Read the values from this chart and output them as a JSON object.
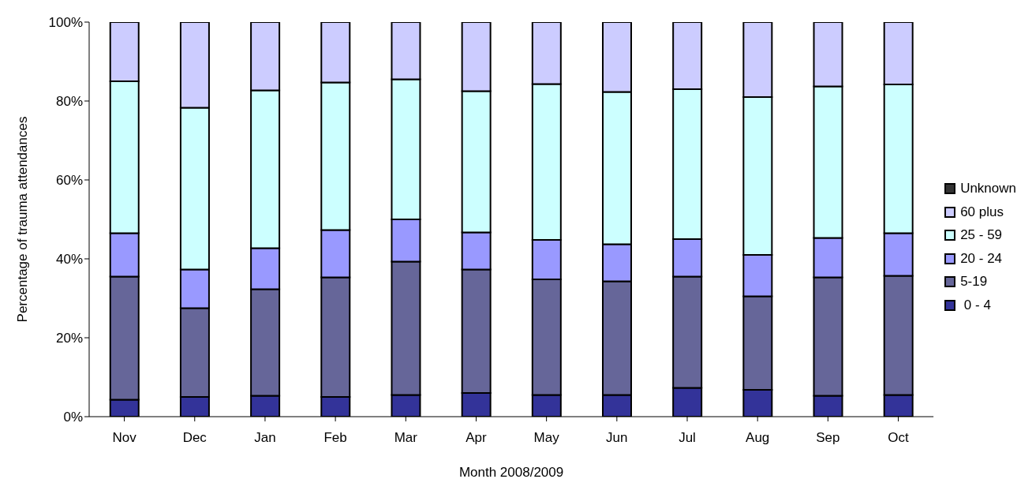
{
  "chart_data": {
    "type": "bar",
    "stacked": true,
    "xlabel": "Month 2008/2009",
    "ylabel": "Percentage of trauma attendances",
    "categories": [
      "Nov",
      "Dec",
      "Jan",
      "Feb",
      "Mar",
      "Apr",
      "May",
      "Jun",
      "Jul",
      "Aug",
      "Sep",
      "Oct"
    ],
    "ylim": [
      0,
      100
    ],
    "yticks": [
      {
        "value": 0,
        "label": "0%"
      },
      {
        "value": 20,
        "label": "20%"
      },
      {
        "value": 40,
        "label": "40%"
      },
      {
        "value": 60,
        "label": "60%"
      },
      {
        "value": 80,
        "label": "80%"
      },
      {
        "value": 100,
        "label": "100%"
      }
    ],
    "grid": false,
    "legend": "right",
    "series": [
      {
        "name": " 0 - 4",
        "color": "#333399",
        "values": [
          4.3,
          5,
          5.3,
          5,
          5.5,
          6,
          5.5,
          5.5,
          7.3,
          6.8,
          5.3,
          5.5
        ]
      },
      {
        "name": "5-19",
        "color": "#666699",
        "values": [
          31.2,
          22.5,
          27,
          30.3,
          33.8,
          31.3,
          29.3,
          28.8,
          28.2,
          23.7,
          30,
          30.2
        ]
      },
      {
        "name": "20 - 24",
        "color": "#9999ff",
        "values": [
          11,
          9.8,
          10.4,
          12,
          10.7,
          9.4,
          10,
          9.4,
          9.5,
          10.5,
          10,
          10.8
        ]
      },
      {
        "name": "25 - 59",
        "color": "#ccffff",
        "values": [
          38.5,
          41,
          40,
          37.4,
          35.5,
          35.8,
          39.5,
          38.6,
          38,
          40,
          38.4,
          37.7
        ]
      },
      {
        "name": "60 plus",
        "color": "#ccccff",
        "values": [
          15,
          21.7,
          17.3,
          15.3,
          14.5,
          17.5,
          15.7,
          17.7,
          17,
          19,
          16.3,
          15.8
        ]
      },
      {
        "name": "Unknown",
        "color": "#333333",
        "values": [
          0,
          0,
          0,
          0,
          0,
          0,
          0,
          0,
          0,
          0,
          0,
          0
        ]
      }
    ]
  }
}
